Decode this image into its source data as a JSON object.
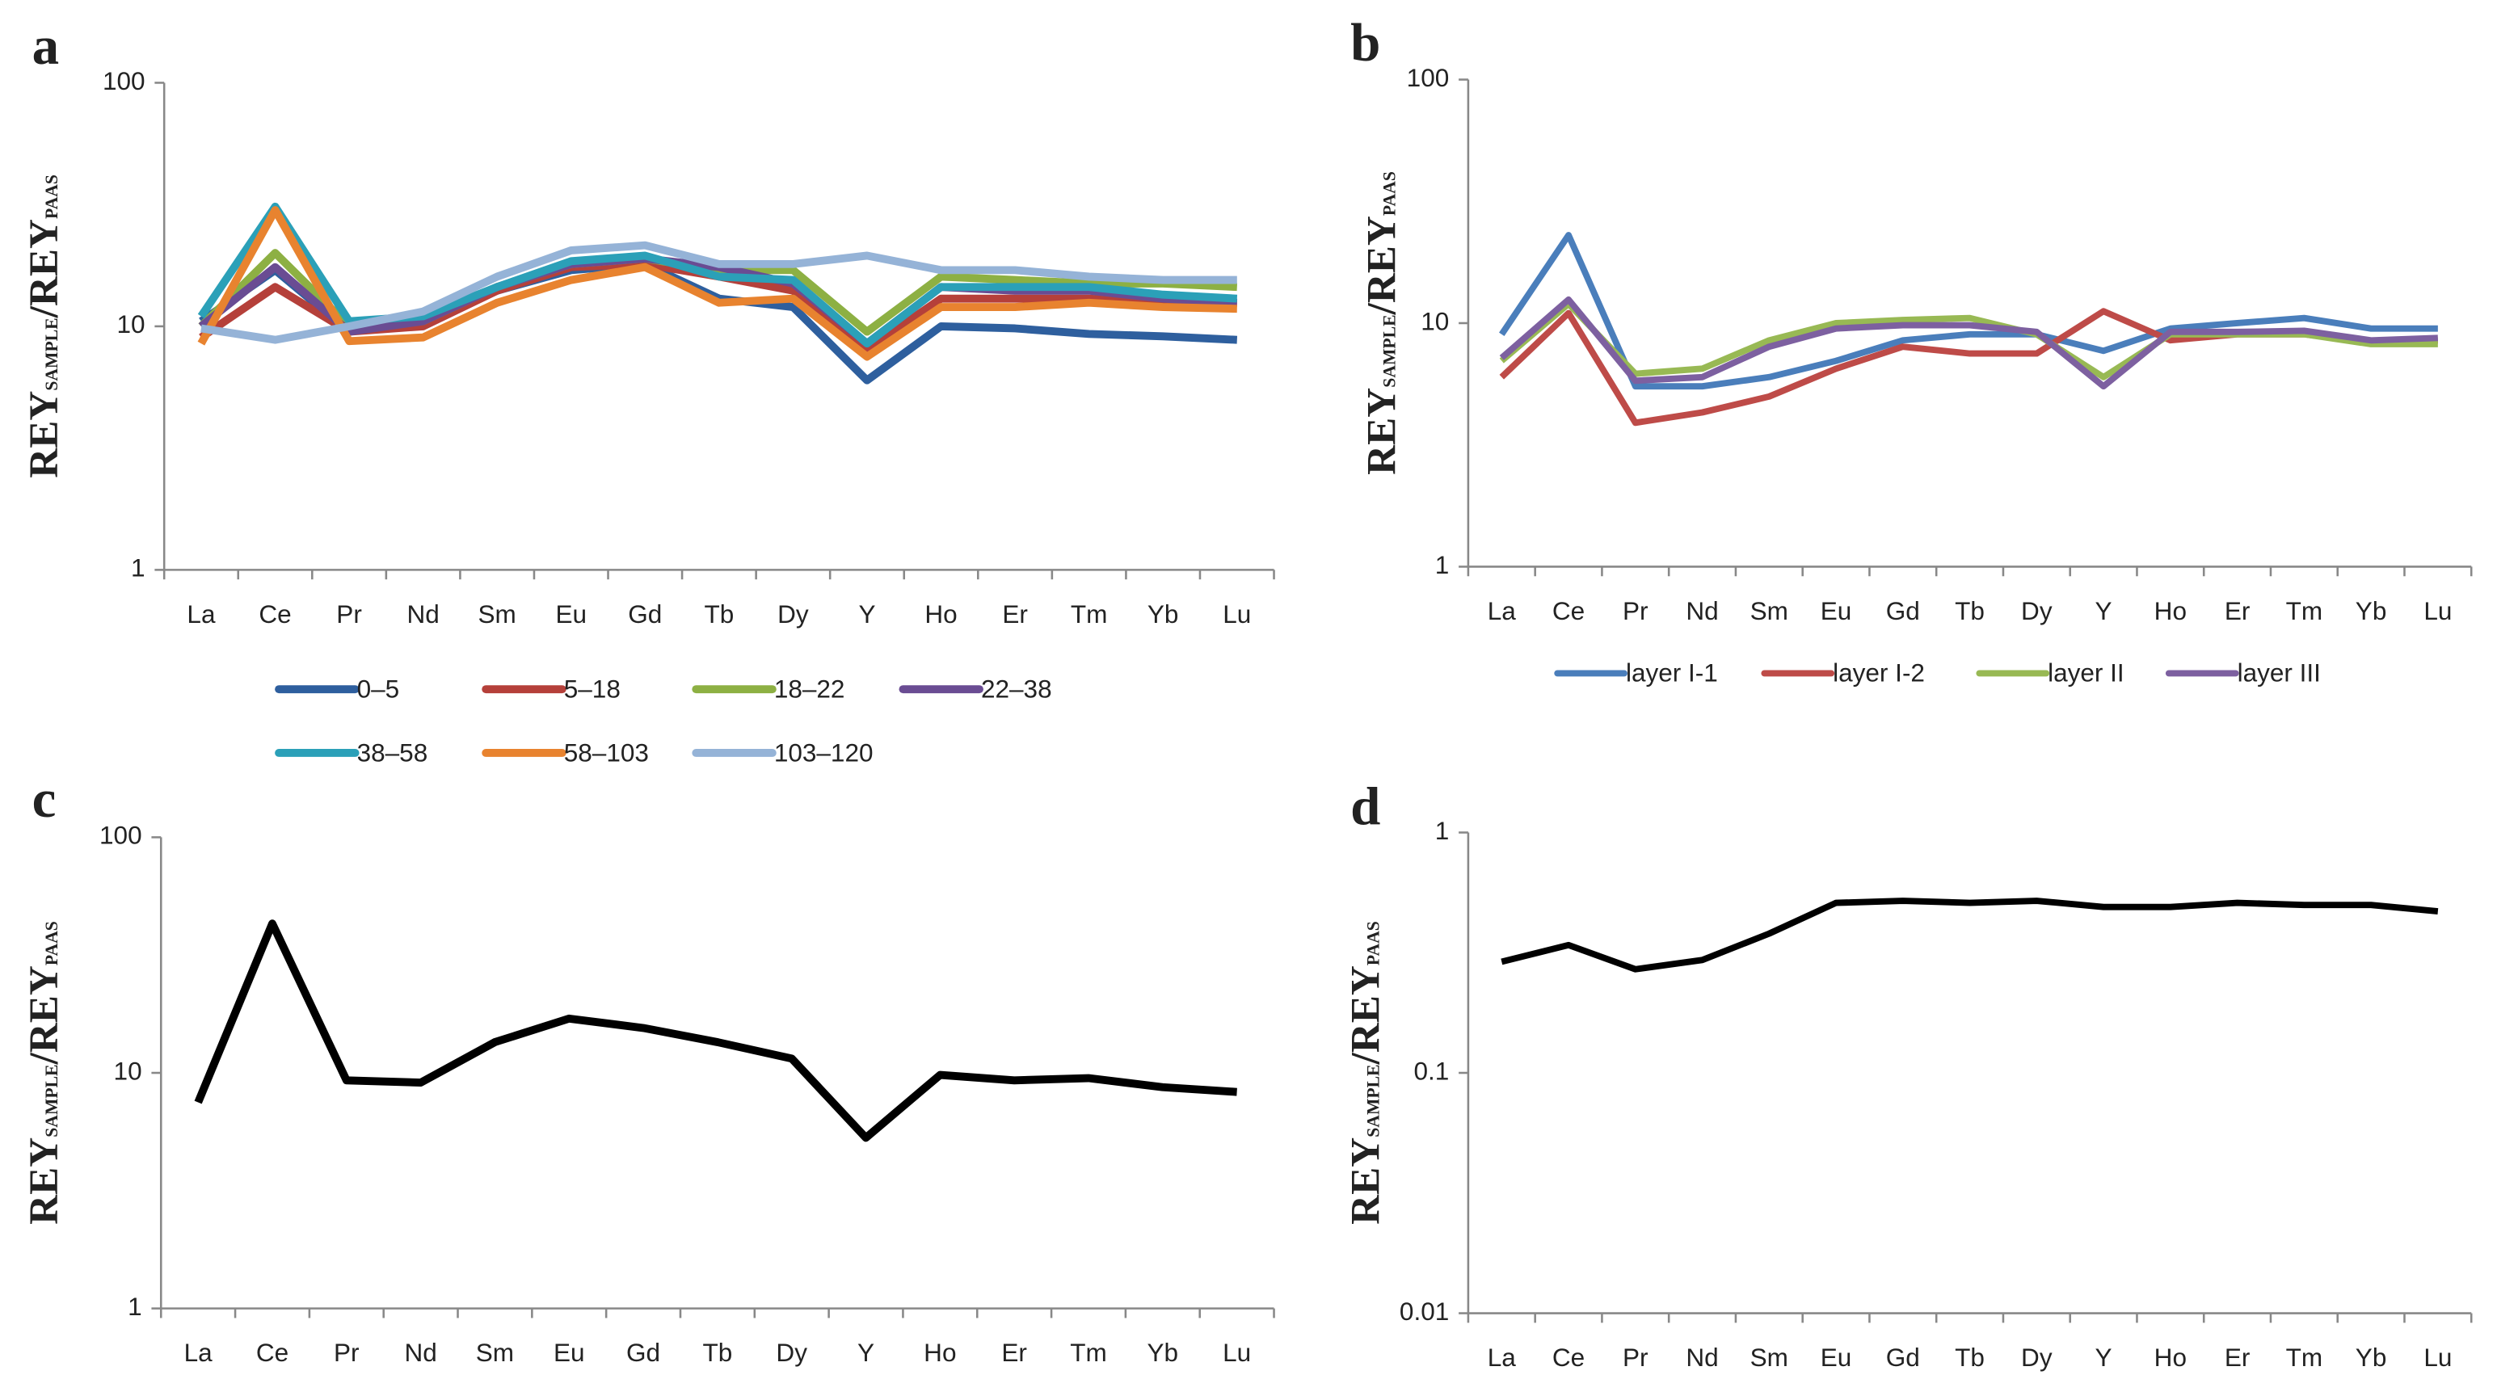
{
  "chart_data": [
    {
      "type": "line",
      "label": "a",
      "log_scale": true,
      "legend": "bottom",
      "ylabel": [
        "REY",
        "SAMPLE",
        "/REY",
        "PAAS"
      ],
      "categories": [
        "La",
        "Ce",
        "Pr",
        "Nd",
        "Sm",
        "Eu",
        "Gd",
        "Tb",
        "Dy",
        "Y",
        "Ho",
        "Er",
        "Tm",
        "Yb",
        "Lu"
      ],
      "ylim": [
        1,
        100
      ],
      "yticks": [
        1,
        10,
        100
      ],
      "series": [
        {
          "name": "0–5",
          "color": "#2e5f9e",
          "values": [
            10.5,
            17,
            9.5,
            10.5,
            14,
            17,
            18,
            13,
            12,
            6,
            10,
            9.8,
            9.3,
            9.1,
            8.8
          ]
        },
        {
          "name": "5–18",
          "color": "#b5403a",
          "values": [
            9,
            14.5,
            9.5,
            10,
            14,
            17.5,
            18,
            16,
            14,
            8,
            13,
            13,
            13,
            12.5,
            12.5
          ]
        },
        {
          "name": "18–22",
          "color": "#8db043",
          "values": [
            10,
            20,
            10,
            10.5,
            14.5,
            18,
            19,
            17,
            17,
            9.5,
            16,
            15.5,
            15,
            15,
            14.5
          ]
        },
        {
          "name": "22–38",
          "color": "#6a4c93",
          "values": [
            10,
            17.5,
            9.5,
            10.5,
            14.5,
            18,
            19,
            17.5,
            15,
            8.5,
            14.5,
            14,
            14,
            13,
            12.5
          ]
        },
        {
          "name": "38–58",
          "color": "#2ba0b8",
          "values": [
            11,
            31,
            10.5,
            11,
            14.5,
            18.5,
            19.5,
            16,
            15.5,
            8.5,
            14.5,
            14.5,
            14.5,
            13.5,
            13
          ]
        },
        {
          "name": "58–103",
          "color": "#e8832f",
          "values": [
            8.5,
            30,
            8.7,
            9,
            12.5,
            15.5,
            17.5,
            12.5,
            13,
            7.5,
            12,
            12,
            12.5,
            12,
            11.8
          ]
        },
        {
          "name": "103–120",
          "color": "#95b3d7",
          "values": [
            9.8,
            8.8,
            10,
            11.5,
            16,
            20.5,
            21.5,
            18,
            18,
            19.5,
            17,
            17,
            16,
            15.5,
            15.5
          ]
        }
      ]
    },
    {
      "type": "line",
      "label": "b",
      "log_scale": true,
      "legend": "bottom",
      "ylabel": [
        "REY",
        "SAMPLE",
        "/REY",
        "PAAS"
      ],
      "categories": [
        "La",
        "Ce",
        "Pr",
        "Nd",
        "Sm",
        "Eu",
        "Gd",
        "Tb",
        "Dy",
        "Y",
        "Ho",
        "Er",
        "Tm",
        "Yb",
        "Lu"
      ],
      "ylim": [
        1,
        100
      ],
      "yticks": [
        1,
        10,
        100
      ],
      "series": [
        {
          "name": "layer I-1",
          "color": "#4a7ebb",
          "values": [
            9,
            23,
            5.5,
            5.5,
            6,
            7,
            8.5,
            9,
            9,
            7.7,
            9.5,
            10,
            10.5,
            9.5,
            9.5
          ]
        },
        {
          "name": "layer I-2",
          "color": "#be4b48",
          "values": [
            6,
            11,
            3.9,
            4.3,
            5,
            6.5,
            8,
            7.5,
            7.5,
            11.2,
            8.5,
            9,
            9,
            8.3,
            8.5
          ]
        },
        {
          "name": "layer II",
          "color": "#98b954",
          "values": [
            7,
            12,
            6.2,
            6.5,
            8.5,
            10,
            10.3,
            10.5,
            9,
            6,
            9,
            9,
            9,
            8.2,
            8.2
          ]
        },
        {
          "name": "layer III",
          "color": "#7d60a0",
          "values": [
            7.2,
            12.5,
            5.8,
            6,
            8,
            9.5,
            9.8,
            9.8,
            9.2,
            5.5,
            9.2,
            9.2,
            9.3,
            8.5,
            8.7
          ]
        }
      ]
    },
    {
      "type": "line",
      "label": "c",
      "log_scale": true,
      "ylabel": [
        "REY",
        "SAMPLE",
        "/REY",
        "PAAS"
      ],
      "categories": [
        "La",
        "Ce",
        "Pr",
        "Nd",
        "Sm",
        "Eu",
        "Gd",
        "Tb",
        "Dy",
        "Y",
        "Ho",
        "Er",
        "Tm",
        "Yb",
        "Lu"
      ],
      "ylim": [
        1,
        100
      ],
      "yticks": [
        1,
        10,
        100
      ],
      "color": "#000000",
      "values": [
        7.5,
        43,
        9.3,
        9.1,
        13.5,
        17,
        15.5,
        13.5,
        11.5,
        5.3,
        9.8,
        9.3,
        9.5,
        8.7,
        8.3
      ]
    },
    {
      "type": "line",
      "label": "d",
      "log_scale": true,
      "ylabel": [
        "REY",
        "SAMPLE",
        "/REY",
        "PAAS"
      ],
      "categories": [
        "La",
        "Ce",
        "Pr",
        "Nd",
        "Sm",
        "Eu",
        "Gd",
        "Tb",
        "Dy",
        "Y",
        "Ho",
        "Er",
        "Tm",
        "Yb",
        "Lu"
      ],
      "ylim": [
        0.01,
        1
      ],
      "yticks": [
        0.01,
        0.1,
        1
      ],
      "color": "#000000",
      "values": [
        0.29,
        0.34,
        0.27,
        0.295,
        0.38,
        0.51,
        0.52,
        0.51,
        0.52,
        0.49,
        0.49,
        0.51,
        0.5,
        0.5,
        0.47
      ]
    }
  ]
}
